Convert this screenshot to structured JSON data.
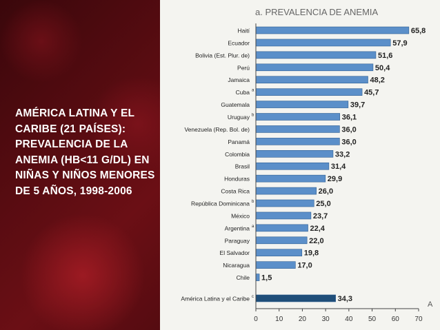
{
  "side_title": "AMÉRICA LATINA Y EL CARIBE (21 PAÍSES): PREVALENCIA DE LA ANEMIA (HB<11 G/DL) EN NIÑAS Y NIÑOS MENORES DE 5 AÑOS, 1998-2006",
  "corner_mark": "A",
  "colors": {
    "bar": "#5b8fc9",
    "bar_highlight": "#1f4e79",
    "panel": "#f4f4f0"
  },
  "chart_data": {
    "type": "bar",
    "orientation": "horizontal",
    "title": "a. PREVALENCIA DE ANEMIA",
    "categories": [
      "Haití",
      "Ecuador",
      "Bolivia (Est. Plur. de)",
      "Perú",
      "Jamaica",
      "Cuba",
      "Guatemala",
      "Uruguay",
      "Venezuela (Rep. Bol. de)",
      "Panamá",
      "Colombia",
      "Brasil",
      "Honduras",
      "Costa Rica",
      "República Dominicana",
      "México",
      "Argentina",
      "Paraguay",
      "El Salvador",
      "Nicaragua",
      "Chile",
      "América Latina y el Caribe"
    ],
    "superscripts": [
      "",
      "",
      "",
      "",
      "",
      "a",
      "",
      "b",
      "",
      "",
      "",
      "",
      "",
      "",
      "b",
      "",
      "a",
      "",
      "",
      "",
      "",
      "c"
    ],
    "values": [
      65.8,
      57.9,
      51.6,
      50.4,
      48.2,
      45.7,
      39.7,
      36.1,
      36.0,
      36.0,
      33.2,
      31.4,
      29.9,
      26.0,
      25.0,
      23.7,
      22.4,
      22.0,
      19.8,
      17.0,
      1.5,
      34.3
    ],
    "value_labels": [
      "65,8",
      "57,9",
      "51,6",
      "50,4",
      "48,2",
      "45,7",
      "39,7",
      "36,1",
      "36,0",
      "36,0",
      "33,2",
      "31,4",
      "29,9",
      "26,0",
      "25,0",
      "23,7",
      "22,4",
      "22,0",
      "19,8",
      "17,0",
      "1,5",
      "34,3"
    ],
    "highlight": "América Latina y el Caribe",
    "xlim": [
      0,
      70
    ],
    "xticks": [
      "0",
      "10",
      "20",
      "30",
      "40",
      "50",
      "60",
      "70"
    ]
  }
}
